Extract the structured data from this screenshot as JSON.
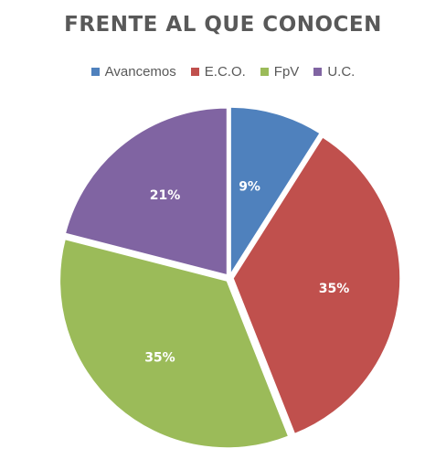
{
  "chart_data": {
    "type": "pie",
    "title": "FRENTE AL QUE CONOCEN",
    "legend_position": "top",
    "categories": [
      "Avancemos",
      "E.C.O.",
      "FpV",
      "U.C."
    ],
    "values": [
      9,
      35,
      35,
      21
    ],
    "labels": [
      "9%",
      "35%",
      "35%",
      "21%"
    ],
    "colors": [
      "#4F81BD",
      "#C0504D",
      "#9BBB59",
      "#8064A2"
    ]
  }
}
